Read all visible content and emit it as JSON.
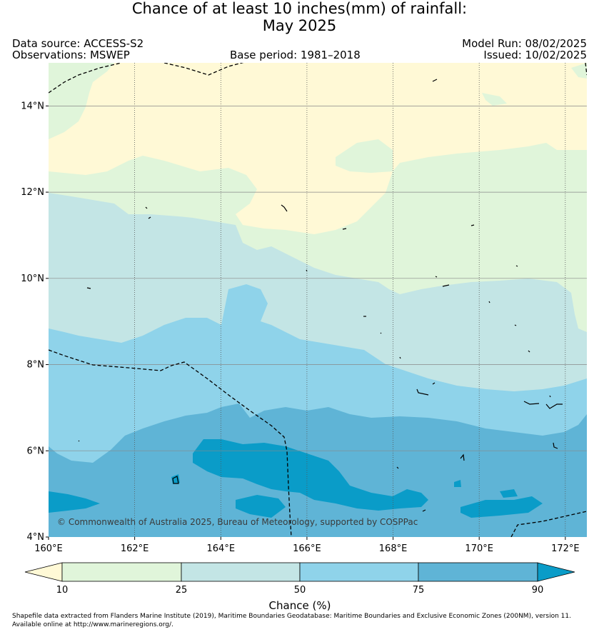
{
  "title": {
    "line1": "Chance of at least 10 inches(mm) of rainfall:",
    "line2": "May 2025"
  },
  "meta": {
    "data_source": "Data source: ACCESS-S2",
    "observations": "Observations: MSWEP",
    "base_period": "Base period: 1981–2018",
    "model_run": "Model Run: 08/02/2025",
    "issued": "Issued: 10/02/2025"
  },
  "map": {
    "lon_range": [
      160,
      172.5
    ],
    "lat_range": [
      4,
      15
    ],
    "x_ticks": [
      {
        "value": 160,
        "label": "160°E"
      },
      {
        "value": 162,
        "label": "162°E"
      },
      {
        "value": 164,
        "label": "164°E"
      },
      {
        "value": 166,
        "label": "166°E"
      },
      {
        "value": 168,
        "label": "168°E"
      },
      {
        "value": 170,
        "label": "170°E"
      },
      {
        "value": 172,
        "label": "172°E"
      }
    ],
    "y_ticks": [
      {
        "value": 4,
        "label": "4°N"
      },
      {
        "value": 6,
        "label": "6°N"
      },
      {
        "value": 8,
        "label": "8°N"
      },
      {
        "value": 10,
        "label": "10°N"
      },
      {
        "value": 12,
        "label": "12°N"
      },
      {
        "value": 14,
        "label": "14°N"
      }
    ],
    "gridlines": true,
    "copyright": "© Commonwealth of Australia 2025, Bureau of Meteorology, supported by COSPPac"
  },
  "colorbar": {
    "label": "Chance (%)",
    "ticks": [
      "10",
      "25",
      "50",
      "75",
      "90"
    ],
    "colors": {
      "below_10": "#fff9d6",
      "10_25": "#e0f5da",
      "25_50": "#c3e5e5",
      "50_75": "#8fd3ea",
      "75_90": "#5fb4d6",
      "above_90": "#0a9cc8"
    }
  },
  "footer": {
    "line1": "Shapefile data extracted from Flanders Marine Institute (2019), Maritime Boundaries Geodatabase: Maritime Boundaries and Exclusive Economic Zones (200NM), version 11.",
    "line2": "Available online at http://www.marineregions.org/."
  }
}
